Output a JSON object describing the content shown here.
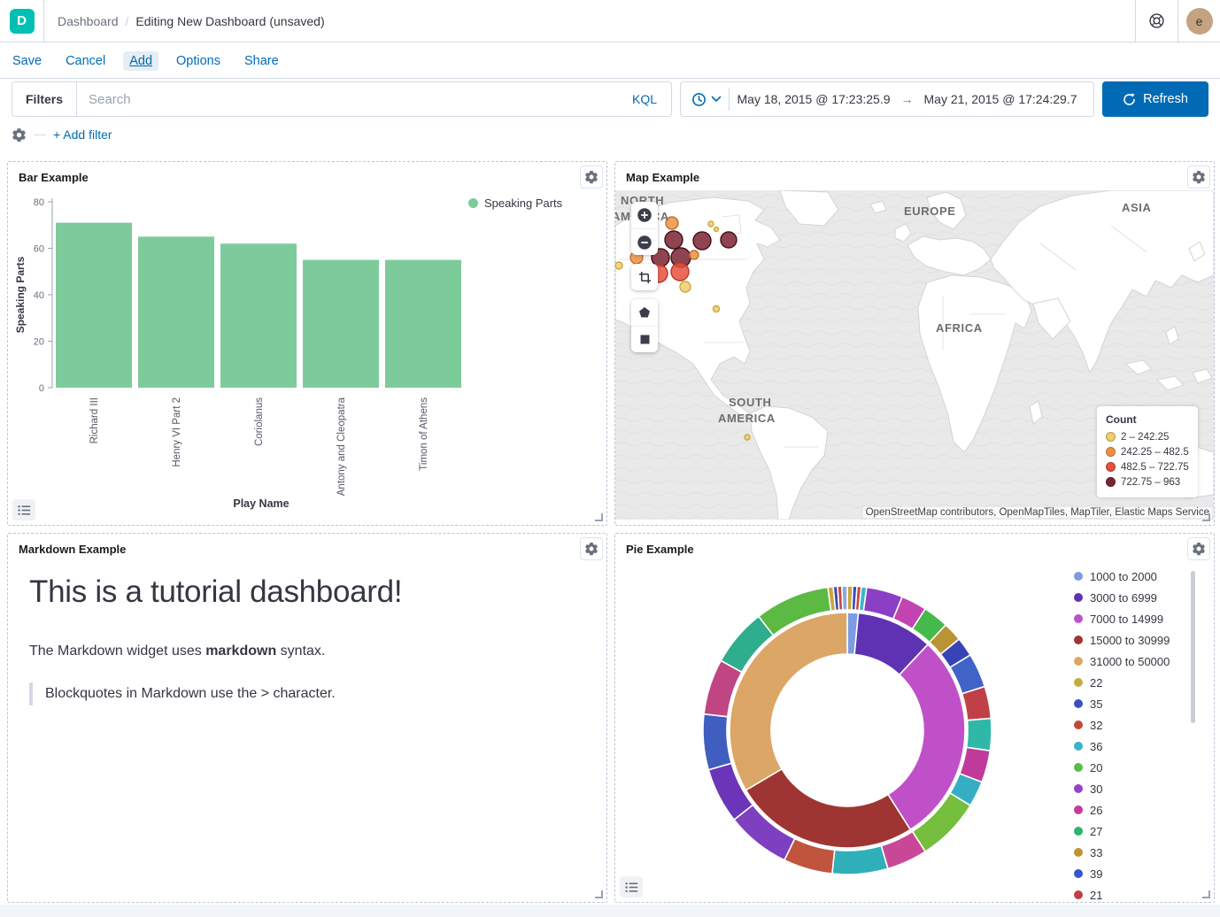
{
  "header": {
    "logo_letter": "D",
    "breadcrumb": {
      "section": "Dashboard",
      "separator": "/",
      "page": "Editing New Dashboard (unsaved)"
    },
    "avatar_letter": "e"
  },
  "menu": {
    "items": [
      "Save",
      "Cancel",
      "Add",
      "Options",
      "Share"
    ],
    "active": "Add"
  },
  "query_bar": {
    "filters_label": "Filters",
    "search_placeholder": "Search",
    "kql_label": "KQL",
    "date_from": "May 18, 2015 @ 17:23:25.9",
    "date_arrow": "→",
    "date_to": "May 21, 2015 @ 17:24:29.7",
    "refresh_label": "Refresh",
    "add_filter_label": "+ Add filter"
  },
  "panels": {
    "bar": {
      "title": "Bar Example",
      "legend_label": "Speaking Parts"
    },
    "map": {
      "title": "Map Example",
      "labels": {
        "north1": "NORTH",
        "north2": "AMERICA",
        "europe": "EUROPE",
        "asia": "ASIA",
        "africa": "AFRICA",
        "south1": "SOUTH",
        "south2": "AMERICA"
      },
      "legend_title": "Count",
      "legend_items": [
        {
          "label": "2 – 242.25",
          "color": "#EFCE6B"
        },
        {
          "label": "242.25 – 482.5",
          "color": "#EE9044"
        },
        {
          "label": "482.5 – 722.75",
          "color": "#E7503C"
        },
        {
          "label": "722.75 – 963",
          "color": "#7A2433"
        }
      ],
      "attribution": "OpenStreetMap contributors, OpenMapTiles, MapTiler, Elastic Maps Service"
    },
    "markdown": {
      "title": "Markdown Example",
      "heading": "This is a tutorial dashboard!",
      "para_prefix": "The Markdown widget uses ",
      "para_bold": "markdown",
      "para_suffix": " syntax.",
      "blockquote": "Blockquotes in Markdown use the > character."
    },
    "pie": {
      "title": "Pie Example",
      "legend_items": [
        {
          "label": "1000 to 2000",
          "color": "#7C9CE0"
        },
        {
          "label": "3000 to 6999",
          "color": "#5E32B2"
        },
        {
          "label": "7000 to 14999",
          "color": "#C050C8"
        },
        {
          "label": "15000 to 30999",
          "color": "#9E3533"
        },
        {
          "label": "31000 to 50000",
          "color": "#DCA666"
        },
        {
          "label": "22",
          "color": "#C5AC3F"
        },
        {
          "label": "35",
          "color": "#3A50C2"
        },
        {
          "label": "32",
          "color": "#C04A3A"
        },
        {
          "label": "36",
          "color": "#38B4C4"
        },
        {
          "label": "20",
          "color": "#58BD48"
        },
        {
          "label": "30",
          "color": "#9241CC"
        },
        {
          "label": "26",
          "color": "#C8389E"
        },
        {
          "label": "27",
          "color": "#2BB56A"
        },
        {
          "label": "33",
          "color": "#BE9330"
        },
        {
          "label": "39",
          "color": "#3358C5"
        },
        {
          "label": "21",
          "color": "#C04040"
        }
      ]
    }
  },
  "chart_data": [
    {
      "type": "bar",
      "title": "Bar Example",
      "series_name": "Speaking Parts",
      "categories": [
        "Richard III",
        "Henry VI Part 2",
        "Coriolanus",
        "Antony and Cleopatra",
        "Timon of Athens"
      ],
      "values": [
        71,
        65,
        62,
        55,
        55
      ],
      "xlabel": "Play Name",
      "ylabel": "Speaking Parts",
      "ylim": [
        0,
        80
      ],
      "yticks": [
        0,
        20,
        40,
        60,
        80
      ],
      "bar_color": "#7DCB9B",
      "legend_position": "top-right",
      "grid": false
    },
    {
      "type": "pie",
      "subtype": "sunburst-donut",
      "title": "Pie Example",
      "inner": [
        {
          "label": "1000 to 2000",
          "value": 1.5,
          "color": "#7C9CE0"
        },
        {
          "label": "3000 to 6999",
          "value": 10.5,
          "color": "#5E32B2"
        },
        {
          "label": "7000 to 14999",
          "value": 29,
          "color": "#C050C8"
        },
        {
          "label": "15000 to 30999",
          "value": 25.5,
          "color": "#9E3533"
        },
        {
          "label": "31000 to 50000",
          "value": 33.5,
          "color": "#DCA666"
        }
      ],
      "outer": [
        {
          "value": 0.5,
          "color": "#C9A53F"
        },
        {
          "value": 0.4,
          "color": "#3A49B8"
        },
        {
          "value": 0.4,
          "color": "#C34A3B"
        },
        {
          "value": 0.5,
          "color": "#39B5C8"
        },
        {
          "value": 3.4,
          "color": "#8B3FC6"
        },
        {
          "value": 2.4,
          "color": "#C244B0"
        },
        {
          "value": 2.4,
          "color": "#45B94A"
        },
        {
          "value": 1.8,
          "color": "#B89434"
        },
        {
          "value": 1.8,
          "color": "#3843B8"
        },
        {
          "value": 3.2,
          "color": "#4063C8"
        },
        {
          "value": 3.0,
          "color": "#C04048"
        },
        {
          "value": 3.0,
          "color": "#2FB8A8"
        },
        {
          "value": 3.0,
          "color": "#C03A9C"
        },
        {
          "value": 2.4,
          "color": "#35AEC4"
        },
        {
          "value": 6.0,
          "color": "#76BE3E"
        },
        {
          "value": 3.8,
          "color": "#C84897"
        },
        {
          "value": 5.2,
          "color": "#2FAFB8"
        },
        {
          "value": 4.6,
          "color": "#C0543C"
        },
        {
          "value": 6.0,
          "color": "#7E3FC0"
        },
        {
          "value": 5.2,
          "color": "#6A35B8"
        },
        {
          "value": 5.2,
          "color": "#3F5EC0"
        },
        {
          "value": 5.2,
          "color": "#C04583"
        },
        {
          "value": 5.4,
          "color": "#2EAE8C"
        },
        {
          "value": 7.0,
          "color": "#5CB944"
        },
        {
          "value": 0.5,
          "color": "#C9A53F"
        },
        {
          "value": 0.4,
          "color": "#3A49B8"
        },
        {
          "value": 0.4,
          "color": "#C34A3B"
        },
        {
          "value": 0.5,
          "color": "#8FA8E0"
        }
      ],
      "legend_position": "right"
    },
    {
      "type": "map-points",
      "title": "Map Example",
      "legend_title": "Count",
      "bucket_colors": [
        "#EFCE6B",
        "#EE9044",
        "#E7503C",
        "#7A2433"
      ],
      "bucket_strokes": [
        "#C9A83C",
        "#C0702E",
        "#B03A2A",
        "#451019"
      ],
      "points": [
        {
          "x": 64,
          "y": 37,
          "r": 7,
          "bucket": 1
        },
        {
          "x": 108,
          "y": 38,
          "r": 3,
          "bucket": 0
        },
        {
          "x": 114,
          "y": 44,
          "r": 2.5,
          "bucket": 0
        },
        {
          "x": 66,
          "y": 56,
          "r": 10,
          "bucket": 3
        },
        {
          "x": 98,
          "y": 57,
          "r": 10,
          "bucket": 3
        },
        {
          "x": 128,
          "y": 56,
          "r": 9,
          "bucket": 3
        },
        {
          "x": 24,
          "y": 76,
          "r": 7,
          "bucket": 1
        },
        {
          "x": 51,
          "y": 76,
          "r": 10,
          "bucket": 3
        },
        {
          "x": 74,
          "y": 76,
          "r": 11,
          "bucket": 3
        },
        {
          "x": 89,
          "y": 73,
          "r": 5,
          "bucket": 1
        },
        {
          "x": 49,
          "y": 94,
          "r": 10,
          "bucket": 2
        },
        {
          "x": 73,
          "y": 92,
          "r": 10,
          "bucket": 2
        },
        {
          "x": 4,
          "y": 85,
          "r": 4,
          "bucket": 0
        },
        {
          "x": 44,
          "y": 108,
          "r": 3,
          "bucket": 0
        },
        {
          "x": 79,
          "y": 109,
          "r": 6,
          "bucket": 0
        },
        {
          "x": 114,
          "y": 134,
          "r": 3.5,
          "bucket": 0
        },
        {
          "x": 149,
          "y": 279,
          "r": 3,
          "bucket": 0
        }
      ]
    }
  ]
}
